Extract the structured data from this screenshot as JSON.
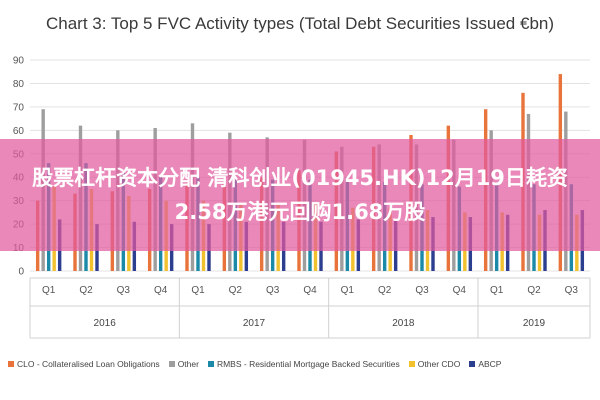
{
  "chart_data": {
    "type": "bar",
    "title": "Chart 3: Top 5 FVC Activity types (Total Debt Securities Issued €bn)",
    "ylim": [
      0,
      90
    ],
    "yticks": [
      "0",
      "10",
      "20",
      "30",
      "40",
      "50",
      "60",
      "70",
      "80",
      "90"
    ],
    "grid": true,
    "legend_position": "bottom",
    "categories": [
      "Q1",
      "Q2",
      "Q3",
      "Q4",
      "Q1",
      "Q2",
      "Q3",
      "Q4",
      "Q1",
      "Q2",
      "Q3",
      "Q4",
      "Q1",
      "Q2",
      "Q3"
    ],
    "years": [
      {
        "label": "2016",
        "quarters": 4
      },
      {
        "label": "2017",
        "quarters": 4
      },
      {
        "label": "2018",
        "quarters": 4
      },
      {
        "label": "2019",
        "quarters": 3
      }
    ],
    "series": [
      {
        "name": "CLO - Collateralised Loan Obligations",
        "color": "#e8743b",
        "values": [
          30,
          33,
          34,
          35,
          37,
          38,
          40,
          43,
          51,
          53,
          58,
          62,
          69,
          76,
          84
        ]
      },
      {
        "name": "Other",
        "color": "#9e9e9e",
        "values": [
          69,
          62,
          60,
          61,
          63,
          59,
          57,
          56,
          53,
          54,
          54,
          56,
          60,
          67,
          68
        ]
      },
      {
        "name": "RMBS - Residential Mortgage Backed Securities",
        "color": "#1b8aa8",
        "values": [
          46,
          46,
          42,
          40,
          40,
          39,
          39,
          39,
          40,
          38,
          37,
          36,
          37,
          37,
          37
        ]
      },
      {
        "name": "Other CDO",
        "color": "#f2c12e",
        "values": [
          36,
          35,
          32,
          30,
          30,
          29,
          29,
          29,
          27,
          27,
          26,
          25,
          25,
          24,
          24
        ]
      },
      {
        "name": "ABCP",
        "color": "#2c3e8f",
        "values": [
          22,
          20,
          21,
          20,
          20,
          21,
          21,
          21,
          22,
          22,
          23,
          23,
          24,
          26,
          26
        ]
      }
    ]
  },
  "banner": {
    "text": "股票杠杆资本分配 清科创业(01945.HK)12月19日耗资2.58万港元回购1.68万股",
    "color": "#e25aa0"
  }
}
